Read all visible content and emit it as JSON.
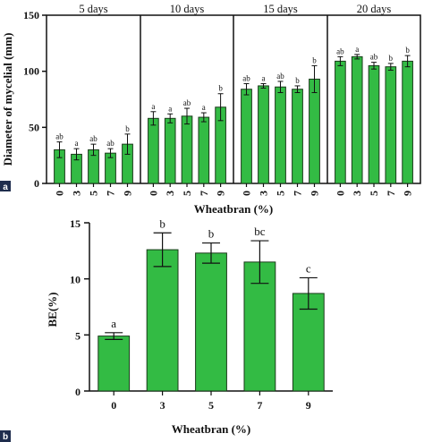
{
  "colors": {
    "bar": "#33bb44",
    "barStroke": "#1a3a1a",
    "axis": "#111111",
    "panelTagBg": "#1f2d4d"
  },
  "chart_data": [
    {
      "type": "bar",
      "panel_tag": "a",
      "xlabel": "Wheatbran (%)",
      "ylabel": "Diameter of mycelial (mm)",
      "ylim": [
        0,
        150
      ],
      "yticks": [
        0,
        50,
        100,
        150
      ],
      "groups": [
        {
          "name": "5 days",
          "categories": [
            "0",
            "3",
            "5",
            "7",
            "9"
          ],
          "values": [
            30,
            26,
            30,
            27,
            35
          ],
          "errors": [
            7,
            5,
            5,
            4,
            9
          ],
          "labels": [
            "ab",
            "a",
            "ab",
            "ab",
            "b"
          ]
        },
        {
          "name": "10 days",
          "categories": [
            "0",
            "3",
            "5",
            "7",
            "9"
          ],
          "values": [
            58,
            58,
            60,
            59,
            68
          ],
          "errors": [
            6,
            4,
            7,
            4,
            12
          ],
          "labels": [
            "a",
            "a",
            "ab",
            "a",
            "b"
          ]
        },
        {
          "name": "15 days",
          "categories": [
            "0",
            "3",
            "5",
            "7",
            "9"
          ],
          "values": [
            84,
            87,
            86,
            84,
            93
          ],
          "errors": [
            5,
            2,
            5,
            3,
            12
          ],
          "labels": [
            "ab",
            "a",
            "ab",
            "b",
            "b"
          ]
        },
        {
          "name": "20 days",
          "categories": [
            "0",
            "3",
            "5",
            "7",
            "9"
          ],
          "values": [
            109,
            113,
            105,
            104,
            109
          ],
          "errors": [
            4,
            2,
            3,
            3,
            5
          ],
          "labels": [
            "ab",
            "a",
            "ab",
            "b",
            "b"
          ]
        }
      ]
    },
    {
      "type": "bar",
      "panel_tag": "b",
      "xlabel": "Wheatbran (%)",
      "ylabel": "BE(%)",
      "ylim": [
        0,
        15
      ],
      "yticks": [
        0,
        5,
        10,
        15
      ],
      "categories": [
        "0",
        "3",
        "5",
        "7",
        "9"
      ],
      "values": [
        4.9,
        12.6,
        12.3,
        11.5,
        8.7
      ],
      "errors": [
        0.3,
        1.5,
        0.9,
        1.9,
        1.4
      ],
      "labels": [
        "a",
        "b",
        "b",
        "bc",
        "c"
      ]
    }
  ]
}
